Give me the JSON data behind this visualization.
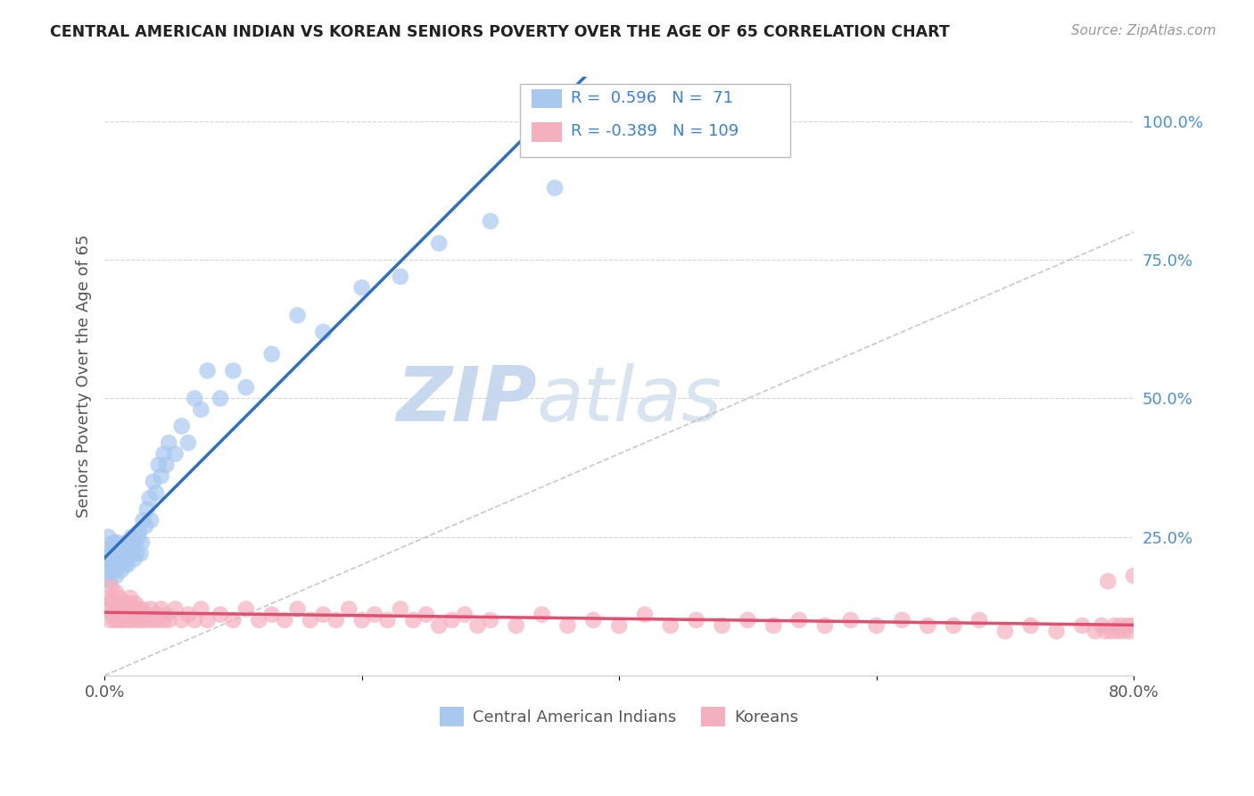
{
  "title": "CENTRAL AMERICAN INDIAN VS KOREAN SENIORS POVERTY OVER THE AGE OF 65 CORRELATION CHART",
  "source": "Source: ZipAtlas.com",
  "ylabel": "Seniors Poverty Over the Age of 65",
  "xlim": [
    0.0,
    0.8
  ],
  "ylim": [
    0.0,
    1.08
  ],
  "yticks": [
    0.0,
    0.25,
    0.5,
    0.75,
    1.0
  ],
  "ytick_labels": [
    "",
    "25.0%",
    "50.0%",
    "75.0%",
    "100.0%"
  ],
  "xticks": [
    0.0,
    0.2,
    0.4,
    0.6,
    0.8
  ],
  "xtick_labels": [
    "0.0%",
    "",
    "",
    "",
    "80.0%"
  ],
  "blue_R": 0.596,
  "blue_N": 71,
  "pink_R": -0.389,
  "pink_N": 109,
  "blue_color": "#A8C8F0",
  "pink_color": "#F5B0C0",
  "blue_line_color": "#2E6FBE",
  "pink_line_color": "#E05070",
  "grid_color": "#CCCCCC",
  "watermark_color": "#C8D8EE",
  "title_color": "#222222",
  "legend_text_color": "#3A7FD9",
  "right_label_color": "#4A90D9",
  "blue_scatter_x": [
    0.001,
    0.002,
    0.003,
    0.003,
    0.004,
    0.005,
    0.005,
    0.006,
    0.006,
    0.007,
    0.007,
    0.008,
    0.008,
    0.009,
    0.009,
    0.01,
    0.01,
    0.011,
    0.011,
    0.012,
    0.012,
    0.013,
    0.013,
    0.014,
    0.015,
    0.015,
    0.016,
    0.016,
    0.017,
    0.018,
    0.018,
    0.019,
    0.02,
    0.021,
    0.022,
    0.023,
    0.024,
    0.025,
    0.026,
    0.027,
    0.028,
    0.029,
    0.03,
    0.032,
    0.033,
    0.035,
    0.036,
    0.038,
    0.04,
    0.042,
    0.044,
    0.046,
    0.048,
    0.05,
    0.055,
    0.06,
    0.065,
    0.07,
    0.075,
    0.08,
    0.09,
    0.1,
    0.11,
    0.13,
    0.15,
    0.17,
    0.2,
    0.23,
    0.26,
    0.3,
    0.35
  ],
  "blue_scatter_y": [
    0.18,
    0.2,
    0.22,
    0.25,
    0.17,
    0.2,
    0.23,
    0.19,
    0.22,
    0.24,
    0.2,
    0.19,
    0.22,
    0.18,
    0.21,
    0.2,
    0.24,
    0.22,
    0.2,
    0.21,
    0.23,
    0.2,
    0.19,
    0.22,
    0.21,
    0.23,
    0.2,
    0.22,
    0.24,
    0.22,
    0.2,
    0.23,
    0.22,
    0.25,
    0.23,
    0.21,
    0.24,
    0.22,
    0.25,
    0.26,
    0.22,
    0.24,
    0.28,
    0.27,
    0.3,
    0.32,
    0.28,
    0.35,
    0.33,
    0.38,
    0.36,
    0.4,
    0.38,
    0.42,
    0.4,
    0.45,
    0.42,
    0.5,
    0.48,
    0.55,
    0.5,
    0.55,
    0.52,
    0.58,
    0.65,
    0.62,
    0.7,
    0.72,
    0.78,
    0.82,
    0.88
  ],
  "pink_scatter_x": [
    0.002,
    0.003,
    0.004,
    0.005,
    0.005,
    0.006,
    0.007,
    0.008,
    0.008,
    0.009,
    0.01,
    0.01,
    0.011,
    0.012,
    0.013,
    0.013,
    0.014,
    0.015,
    0.015,
    0.016,
    0.017,
    0.018,
    0.019,
    0.02,
    0.02,
    0.021,
    0.022,
    0.023,
    0.024,
    0.025,
    0.026,
    0.027,
    0.028,
    0.029,
    0.03,
    0.032,
    0.034,
    0.036,
    0.038,
    0.04,
    0.042,
    0.044,
    0.046,
    0.048,
    0.05,
    0.055,
    0.06,
    0.065,
    0.07,
    0.075,
    0.08,
    0.09,
    0.1,
    0.11,
    0.12,
    0.13,
    0.14,
    0.15,
    0.16,
    0.17,
    0.18,
    0.19,
    0.2,
    0.21,
    0.22,
    0.23,
    0.24,
    0.25,
    0.26,
    0.27,
    0.28,
    0.29,
    0.3,
    0.32,
    0.34,
    0.36,
    0.38,
    0.4,
    0.42,
    0.44,
    0.46,
    0.48,
    0.5,
    0.52,
    0.54,
    0.56,
    0.58,
    0.6,
    0.62,
    0.64,
    0.66,
    0.68,
    0.7,
    0.72,
    0.74,
    0.76,
    0.77,
    0.775,
    0.778,
    0.78,
    0.783,
    0.785,
    0.788,
    0.79,
    0.792,
    0.795,
    0.797,
    0.799,
    0.8
  ],
  "pink_scatter_y": [
    0.12,
    0.14,
    0.1,
    0.13,
    0.16,
    0.11,
    0.14,
    0.1,
    0.12,
    0.15,
    0.1,
    0.13,
    0.11,
    0.14,
    0.1,
    0.12,
    0.11,
    0.13,
    0.1,
    0.12,
    0.11,
    0.1,
    0.13,
    0.11,
    0.14,
    0.1,
    0.12,
    0.11,
    0.13,
    0.1,
    0.12,
    0.11,
    0.1,
    0.12,
    0.1,
    0.11,
    0.1,
    0.12,
    0.1,
    0.11,
    0.1,
    0.12,
    0.1,
    0.11,
    0.1,
    0.12,
    0.1,
    0.11,
    0.1,
    0.12,
    0.1,
    0.11,
    0.1,
    0.12,
    0.1,
    0.11,
    0.1,
    0.12,
    0.1,
    0.11,
    0.1,
    0.12,
    0.1,
    0.11,
    0.1,
    0.12,
    0.1,
    0.11,
    0.09,
    0.1,
    0.11,
    0.09,
    0.1,
    0.09,
    0.11,
    0.09,
    0.1,
    0.09,
    0.11,
    0.09,
    0.1,
    0.09,
    0.1,
    0.09,
    0.1,
    0.09,
    0.1,
    0.09,
    0.1,
    0.09,
    0.09,
    0.1,
    0.08,
    0.09,
    0.08,
    0.09,
    0.08,
    0.09,
    0.08,
    0.17,
    0.08,
    0.09,
    0.08,
    0.09,
    0.08,
    0.09,
    0.08,
    0.09,
    0.18
  ]
}
